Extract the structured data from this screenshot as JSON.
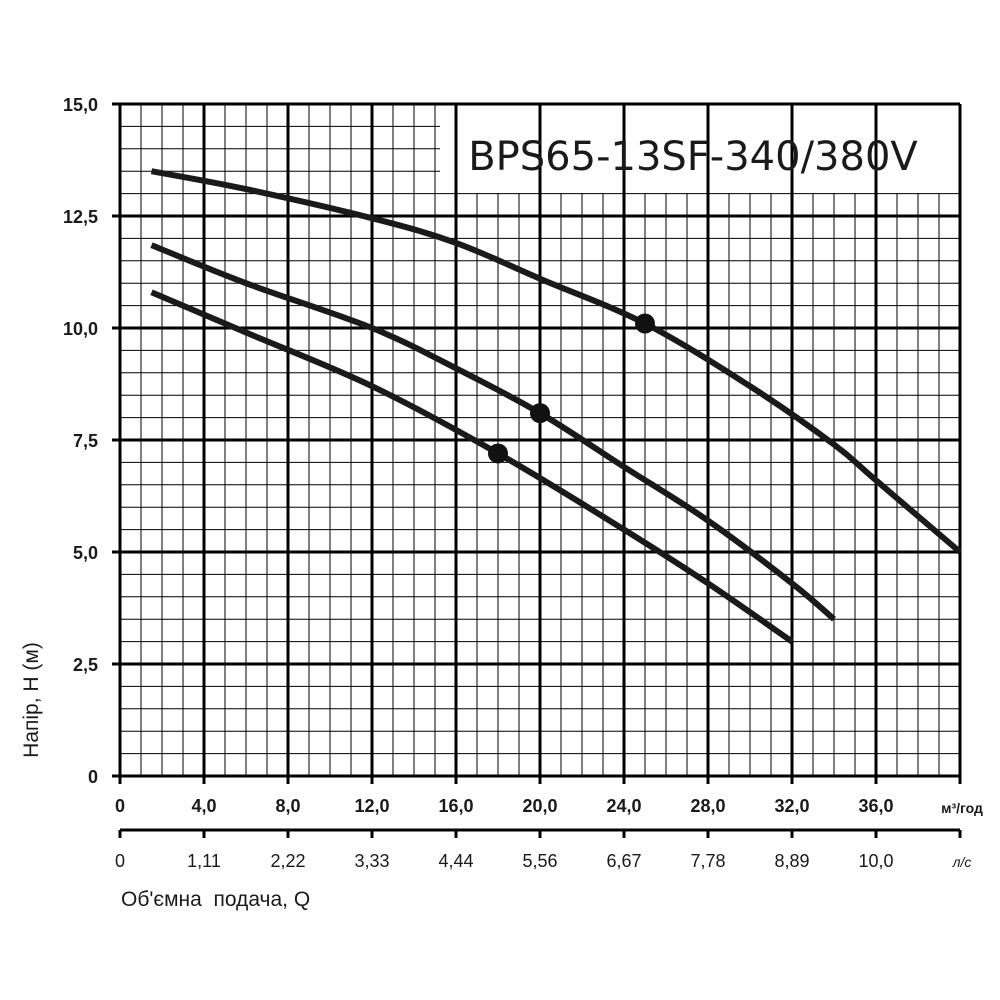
{
  "chart_data": {
    "type": "line",
    "title": "BPS65-13SF-340/380V",
    "ylabel": "Напір, Н (м)",
    "xlabel": "Об'ємна  подача, Q",
    "x_unit": "м³/год",
    "x2_unit": "л/с",
    "xlim": [
      0,
      40
    ],
    "ylim": [
      0,
      15
    ],
    "x_ticks": [
      "0",
      "4,0",
      "8,0",
      "12,0",
      "16,0",
      "20,0",
      "24,0",
      "28,0",
      "32,0",
      "36,0"
    ],
    "x_tick_values": [
      0,
      4,
      8,
      12,
      16,
      20,
      24,
      28,
      32,
      36
    ],
    "x2_ticks": [
      "0",
      "1,11",
      "2,22",
      "3,33",
      "4,44",
      "5,56",
      "6,67",
      "7,78",
      "8,89",
      "10,0"
    ],
    "y_ticks": [
      "0",
      "2,5",
      "5,0",
      "7,5",
      "10,0",
      "12,5",
      "15,0"
    ],
    "y_tick_values": [
      0,
      2.5,
      5,
      7.5,
      10,
      12.5,
      15
    ],
    "grid": true,
    "series": [
      {
        "x": [
          1.5,
          6,
          12,
          16,
          20,
          25,
          30,
          34,
          36,
          40
        ],
        "y": [
          13.5,
          13.1,
          12.45,
          11.9,
          11.1,
          10.1,
          8.7,
          7.4,
          6.6,
          5.0
        ],
        "marker": {
          "x": 25,
          "y": 10.1
        }
      },
      {
        "x": [
          1.5,
          6,
          12,
          16,
          20,
          24,
          28,
          32,
          34
        ],
        "y": [
          11.85,
          11.0,
          10.0,
          9.1,
          8.1,
          6.9,
          5.7,
          4.3,
          3.5
        ],
        "marker": {
          "x": 20,
          "y": 8.1
        }
      },
      {
        "x": [
          1.5,
          6,
          12,
          18,
          24,
          28,
          32
        ],
        "y": [
          10.8,
          9.9,
          8.7,
          7.2,
          5.5,
          4.3,
          3.0
        ],
        "marker": {
          "x": 18,
          "y": 7.2
        }
      }
    ]
  }
}
